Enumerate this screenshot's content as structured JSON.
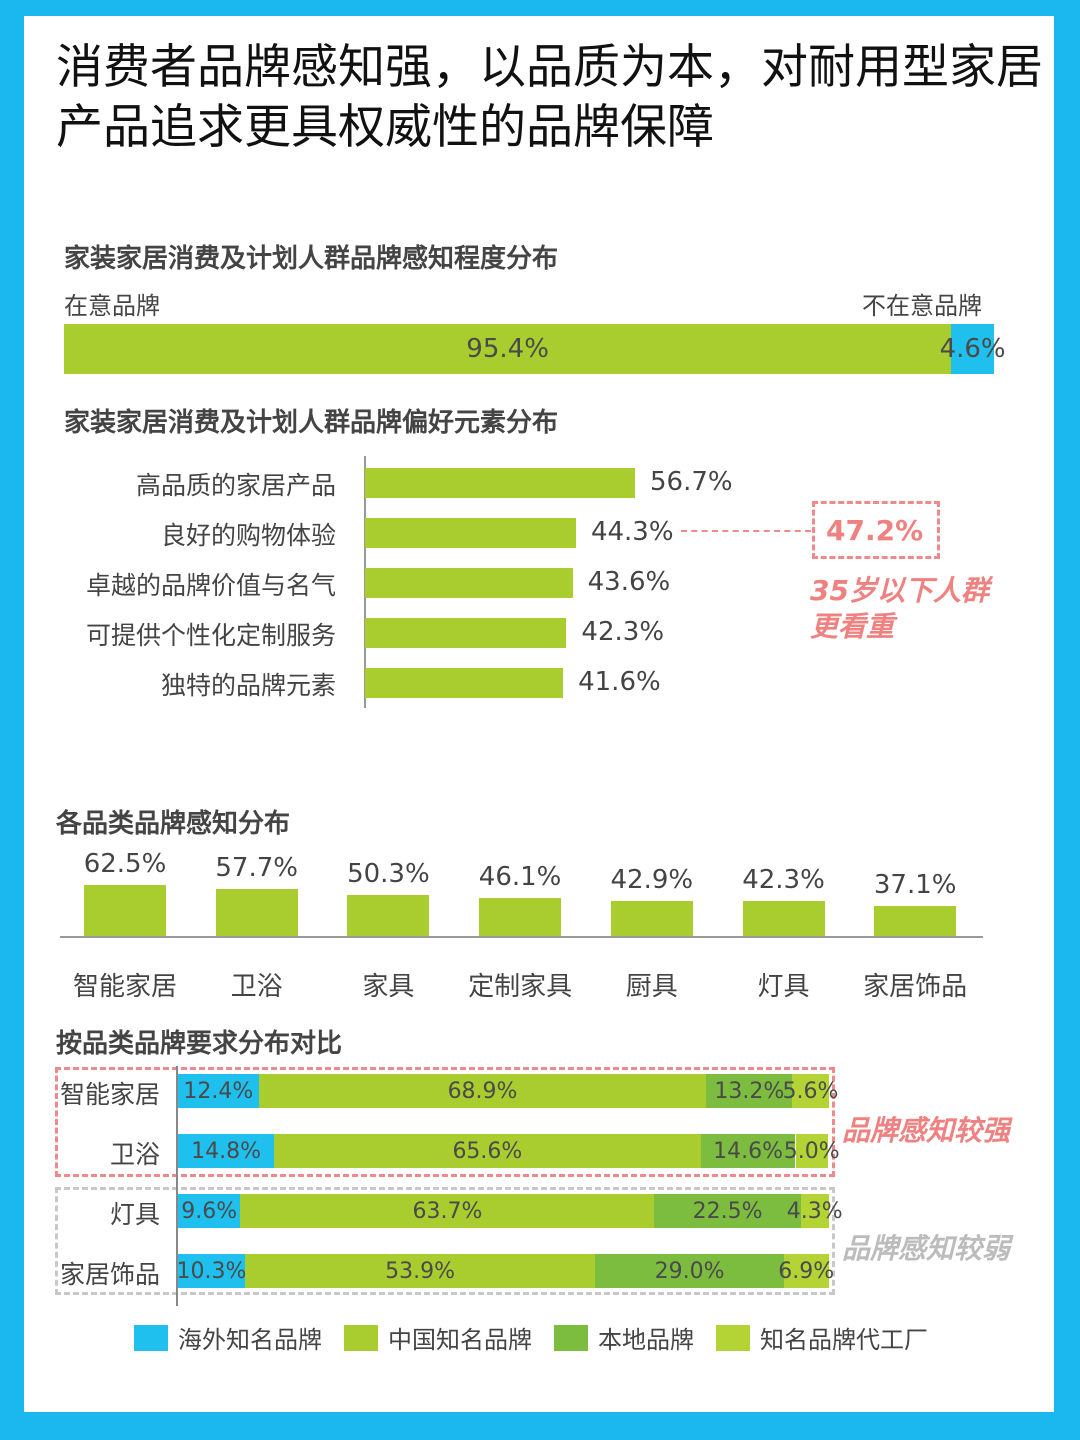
{
  "title": "消费者品牌感知强，以品质为本，对耐用型家居产品追求更具权威性的品牌保障",
  "colors": {
    "overseas": "#1fc0ee",
    "china": "#a9cd2f",
    "local": "#7cbc3f",
    "oem": "#b4d436",
    "accent_red": "#ef8181",
    "frame": "#1bb8f0"
  },
  "chart_data": [
    {
      "type": "bar",
      "title": "家装家居消费及计划人群品牌感知程度分布",
      "left_label": "在意品牌",
      "right_label": "不在意品牌",
      "series": [
        {
          "name": "在意品牌",
          "value": 95.4,
          "label": "95.4%"
        },
        {
          "name": "不在意品牌",
          "value": 4.6,
          "label": "4.6%"
        }
      ]
    },
    {
      "type": "bar",
      "title": "家装家居消费及计划人群品牌偏好元素分布",
      "categories": [
        "高品质的家居产品",
        "良好的购物体验",
        "卓越的品牌价值与名气",
        "可提供个性化定制服务",
        "独特的品牌元素"
      ],
      "values": [
        56.7,
        44.3,
        43.6,
        42.3,
        41.6
      ],
      "labels": [
        "56.7%",
        "44.3%",
        "43.6%",
        "42.3%",
        "41.6%"
      ],
      "annotation": {
        "value": "47.2%",
        "note_line1": "35岁以下人群",
        "note_line2": "更看重"
      }
    },
    {
      "type": "bar",
      "title": "各品类品牌感知分布",
      "categories": [
        "智能家居",
        "卫浴",
        "家具",
        "定制家具",
        "厨具",
        "灯具",
        "家居饰品"
      ],
      "values": [
        62.5,
        57.7,
        50.3,
        46.1,
        42.9,
        42.3,
        37.1
      ],
      "labels": [
        "62.5%",
        "57.7%",
        "50.3%",
        "46.1%",
        "42.9%",
        "42.3%",
        "37.1%"
      ]
    },
    {
      "type": "bar",
      "stacked": true,
      "title": "按品类品牌要求分布对比",
      "categories": [
        "智能家居",
        "卫浴",
        "灯具",
        "家居饰品"
      ],
      "series": [
        {
          "name": "海外知名品牌",
          "values": [
            12.4,
            14.8,
            9.6,
            10.3
          ],
          "labels": [
            "12.4%",
            "14.8%",
            "9.6%",
            "10.3%"
          ]
        },
        {
          "name": "中国知名品牌",
          "values": [
            68.9,
            65.6,
            63.7,
            53.9
          ],
          "labels": [
            "68.9%",
            "65.6%",
            "63.7%",
            "53.9%"
          ]
        },
        {
          "name": "本地品牌",
          "values": [
            13.2,
            14.6,
            22.5,
            29.0
          ],
          "labels": [
            "13.2%",
            "14.6%",
            "22.5%",
            "29.0%"
          ]
        },
        {
          "name": "知名品牌代工厂",
          "values": [
            5.6,
            5.0,
            4.3,
            6.9
          ],
          "labels": [
            "5.6%",
            "5.0%",
            "4.3%",
            "6.9%"
          ]
        }
      ],
      "group_notes": [
        "品牌感知较强",
        "品牌感知较弱"
      ]
    }
  ]
}
